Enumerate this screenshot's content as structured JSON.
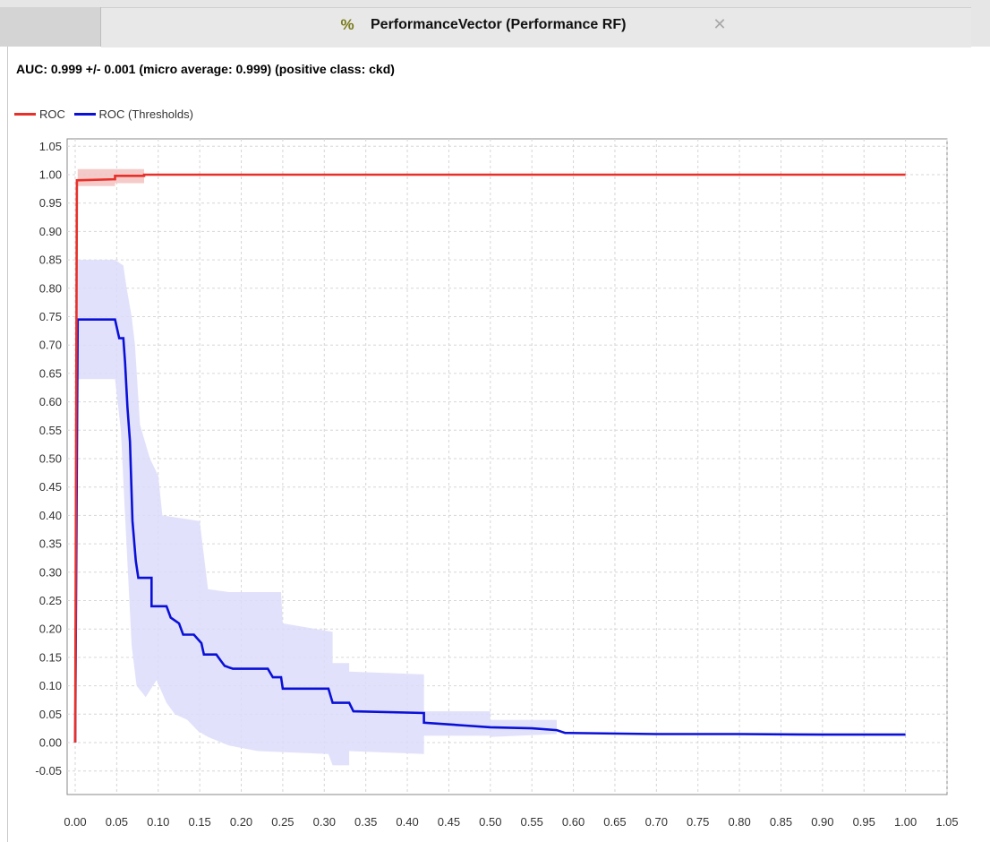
{
  "tab": {
    "icon": "percent-icon",
    "title": "PerformanceVector (Performance RF)",
    "close_icon": "close-icon"
  },
  "auc_text": "AUC: 0.999 +/- 0.001 (micro average: 0.999) (positive class: ckd)",
  "colors": {
    "roc": "#e8302a",
    "roc_band": "#f3c2c0",
    "thresholds": "#0a10d8",
    "thresholds_band": "#dcdcfa"
  },
  "chart_data": {
    "type": "line",
    "title": "",
    "xlabel": "",
    "ylabel": "",
    "xlim": [
      0,
      1.05
    ],
    "ylim": [
      -0.08,
      1.06
    ],
    "grid": true,
    "legend_position": "top-left",
    "x_ticks": [
      "0.00",
      "0.05",
      "0.10",
      "0.15",
      "0.20",
      "0.25",
      "0.30",
      "0.35",
      "0.40",
      "0.45",
      "0.50",
      "0.55",
      "0.60",
      "0.65",
      "0.70",
      "0.75",
      "0.80",
      "0.85",
      "0.90",
      "0.95",
      "1.00",
      "1.05"
    ],
    "y_ticks": [
      "-0.05",
      "0.00",
      "0.05",
      "0.10",
      "0.15",
      "0.20",
      "0.25",
      "0.30",
      "0.35",
      "0.40",
      "0.45",
      "0.50",
      "0.55",
      "0.60",
      "0.65",
      "0.70",
      "0.75",
      "0.80",
      "0.85",
      "0.90",
      "0.95",
      "1.00",
      "1.05"
    ],
    "series": [
      {
        "name": "ROC",
        "points": [
          [
            0,
            0
          ],
          [
            0.002,
            0.99
          ],
          [
            0.048,
            0.992
          ],
          [
            0.048,
            0.998
          ],
          [
            0.083,
            0.998
          ],
          [
            0.083,
            1.0
          ],
          [
            1.0,
            1.0
          ]
        ],
        "band_upper": [
          [
            0,
            0.1
          ],
          [
            0.003,
            1.01
          ],
          [
            0.083,
            1.01
          ],
          [
            0.083,
            1.0
          ],
          [
            1.0,
            1.0
          ]
        ],
        "band_lower": [
          [
            0,
            0
          ],
          [
            0.003,
            0.98
          ],
          [
            0.048,
            0.98
          ],
          [
            0.048,
            0.985
          ],
          [
            0.083,
            0.985
          ],
          [
            0.083,
            1.0
          ],
          [
            1.0,
            1.0
          ]
        ]
      },
      {
        "name": "ROC (Thresholds)",
        "points": [
          [
            0,
            0
          ],
          [
            0.003,
            0.745
          ],
          [
            0.048,
            0.745
          ],
          [
            0.053,
            0.712
          ],
          [
            0.058,
            0.712
          ],
          [
            0.06,
            0.67
          ],
          [
            0.063,
            0.59
          ],
          [
            0.066,
            0.53
          ],
          [
            0.069,
            0.39
          ],
          [
            0.073,
            0.32
          ],
          [
            0.076,
            0.29
          ],
          [
            0.092,
            0.29
          ],
          [
            0.092,
            0.24
          ],
          [
            0.11,
            0.24
          ],
          [
            0.115,
            0.22
          ],
          [
            0.125,
            0.21
          ],
          [
            0.13,
            0.19
          ],
          [
            0.143,
            0.19
          ],
          [
            0.152,
            0.175
          ],
          [
            0.155,
            0.155
          ],
          [
            0.17,
            0.155
          ],
          [
            0.175,
            0.145
          ],
          [
            0.18,
            0.135
          ],
          [
            0.19,
            0.13
          ],
          [
            0.232,
            0.13
          ],
          [
            0.238,
            0.115
          ],
          [
            0.248,
            0.115
          ],
          [
            0.25,
            0.095
          ],
          [
            0.305,
            0.095
          ],
          [
            0.31,
            0.07
          ],
          [
            0.33,
            0.07
          ],
          [
            0.335,
            0.055
          ],
          [
            0.42,
            0.052
          ],
          [
            0.42,
            0.035
          ],
          [
            0.45,
            0.032
          ],
          [
            0.47,
            0.03
          ],
          [
            0.5,
            0.027
          ],
          [
            0.55,
            0.025
          ],
          [
            0.58,
            0.022
          ],
          [
            0.59,
            0.017
          ],
          [
            0.7,
            0.015
          ],
          [
            0.8,
            0.015
          ],
          [
            0.9,
            0.014
          ],
          [
            1.0,
            0.014
          ]
        ],
        "band_upper": [
          [
            0,
            0.1
          ],
          [
            0.003,
            0.85
          ],
          [
            0.048,
            0.85
          ],
          [
            0.058,
            0.84
          ],
          [
            0.062,
            0.8
          ],
          [
            0.068,
            0.75
          ],
          [
            0.072,
            0.7
          ],
          [
            0.078,
            0.56
          ],
          [
            0.09,
            0.5
          ],
          [
            0.1,
            0.47
          ],
          [
            0.105,
            0.4
          ],
          [
            0.15,
            0.39
          ],
          [
            0.16,
            0.27
          ],
          [
            0.185,
            0.265
          ],
          [
            0.21,
            0.265
          ],
          [
            0.248,
            0.265
          ],
          [
            0.25,
            0.21
          ],
          [
            0.31,
            0.195
          ],
          [
            0.31,
            0.14
          ],
          [
            0.33,
            0.14
          ],
          [
            0.33,
            0.125
          ],
          [
            0.42,
            0.12
          ],
          [
            0.42,
            0.055
          ],
          [
            0.5,
            0.055
          ],
          [
            0.5,
            0.04
          ],
          [
            0.58,
            0.04
          ],
          [
            0.58,
            0.015
          ],
          [
            1.0,
            0.015
          ]
        ],
        "band_lower": [
          [
            0,
            0
          ],
          [
            0.003,
            0.64
          ],
          [
            0.048,
            0.64
          ],
          [
            0.055,
            0.55
          ],
          [
            0.06,
            0.4
          ],
          [
            0.068,
            0.17
          ],
          [
            0.074,
            0.1
          ],
          [
            0.085,
            0.08
          ],
          [
            0.098,
            0.11
          ],
          [
            0.11,
            0.07
          ],
          [
            0.12,
            0.05
          ],
          [
            0.135,
            0.04
          ],
          [
            0.148,
            0.02
          ],
          [
            0.16,
            0.01
          ],
          [
            0.185,
            -0.005
          ],
          [
            0.22,
            -0.015
          ],
          [
            0.305,
            -0.02
          ],
          [
            0.31,
            -0.04
          ],
          [
            0.33,
            -0.04
          ],
          [
            0.33,
            -0.015
          ],
          [
            0.42,
            -0.02
          ],
          [
            0.42,
            0.012
          ],
          [
            0.5,
            0.012
          ],
          [
            0.5,
            0.01
          ],
          [
            0.58,
            0.015
          ],
          [
            1.0,
            0.012
          ]
        ]
      }
    ]
  }
}
